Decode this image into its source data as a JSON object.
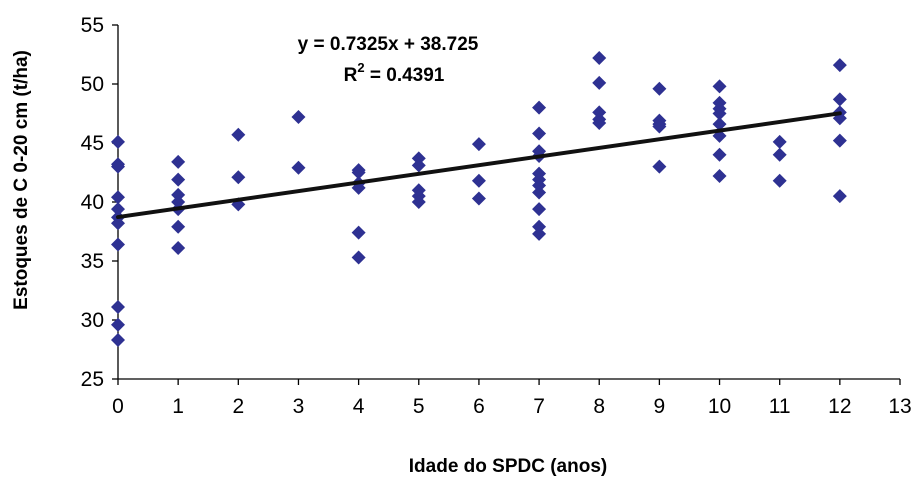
{
  "chart_data": {
    "type": "scatter",
    "xlabel": "Idade do SPDC (anos)",
    "ylabel": "Estoques de C 0-20 cm (t/ha)",
    "xlim": [
      0,
      13
    ],
    "ylim": [
      25,
      55
    ],
    "xticks": [
      "0",
      "1",
      "2",
      "3",
      "4",
      "5",
      "6",
      "7",
      "8",
      "9",
      "10",
      "11",
      "12",
      "13"
    ],
    "yticks": [
      "25",
      "30",
      "35",
      "40",
      "45",
      "50",
      "55"
    ],
    "grid": false,
    "legend": "none",
    "marker": "diamond",
    "marker_color": "#2e3192",
    "trendline": {
      "equation": "y = 0.7325x + 38.725",
      "r2_prefix": "R",
      "r2_exponent": "2",
      "r2_value": " = 0.4391",
      "slope": 0.7325,
      "intercept": 38.725,
      "x_range": [
        0,
        12
      ],
      "color": "#111111"
    },
    "points": [
      [
        0,
        45.1
      ],
      [
        0,
        43.2
      ],
      [
        0,
        43.0
      ],
      [
        0,
        40.4
      ],
      [
        0,
        39.4
      ],
      [
        0,
        38.7
      ],
      [
        0,
        38.2
      ],
      [
        0,
        36.4
      ],
      [
        0,
        31.1
      ],
      [
        0,
        29.6
      ],
      [
        0,
        28.3
      ],
      [
        1,
        43.4
      ],
      [
        1,
        41.9
      ],
      [
        1,
        40.6
      ],
      [
        1,
        40.0
      ],
      [
        1,
        39.4
      ],
      [
        1,
        37.9
      ],
      [
        1,
        36.1
      ],
      [
        2,
        45.7
      ],
      [
        2,
        42.1
      ],
      [
        2,
        39.8
      ],
      [
        3,
        47.2
      ],
      [
        3,
        42.9
      ],
      [
        4,
        42.7
      ],
      [
        4,
        42.5
      ],
      [
        4,
        41.6
      ],
      [
        4,
        41.2
      ],
      [
        4,
        37.4
      ],
      [
        4,
        35.3
      ],
      [
        5,
        43.7
      ],
      [
        5,
        43.1
      ],
      [
        5,
        41.0
      ],
      [
        5,
        40.5
      ],
      [
        5,
        40.0
      ],
      [
        6,
        44.9
      ],
      [
        6,
        41.8
      ],
      [
        6,
        40.3
      ],
      [
        7,
        48.0
      ],
      [
        7,
        45.8
      ],
      [
        7,
        44.3
      ],
      [
        7,
        43.9
      ],
      [
        7,
        42.4
      ],
      [
        7,
        41.9
      ],
      [
        7,
        41.4
      ],
      [
        7,
        40.8
      ],
      [
        7,
        39.4
      ],
      [
        7,
        37.9
      ],
      [
        7,
        37.3
      ],
      [
        8,
        52.2
      ],
      [
        8,
        50.1
      ],
      [
        8,
        47.6
      ],
      [
        8,
        47.0
      ],
      [
        8,
        46.7
      ],
      [
        9,
        49.6
      ],
      [
        9,
        46.9
      ],
      [
        9,
        46.6
      ],
      [
        9,
        46.4
      ],
      [
        9,
        43.0
      ],
      [
        10,
        49.8
      ],
      [
        10,
        48.4
      ],
      [
        10,
        47.9
      ],
      [
        10,
        47.5
      ],
      [
        10,
        46.6
      ],
      [
        10,
        45.6
      ],
      [
        10,
        44.0
      ],
      [
        10,
        42.2
      ],
      [
        11,
        45.1
      ],
      [
        11,
        44.0
      ],
      [
        11,
        41.8
      ],
      [
        12,
        51.6
      ],
      [
        12,
        48.7
      ],
      [
        12,
        47.6
      ],
      [
        12,
        47.1
      ],
      [
        12,
        45.2
      ],
      [
        12,
        40.5
      ]
    ]
  }
}
